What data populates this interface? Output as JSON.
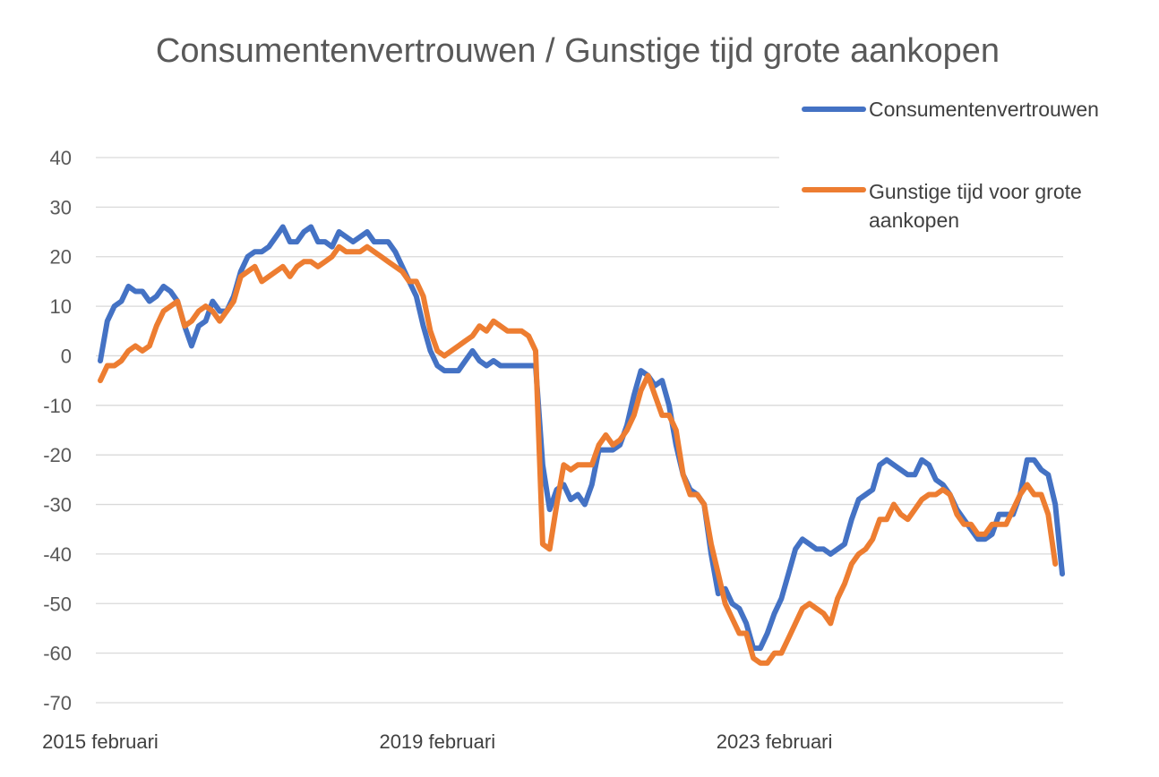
{
  "chart_data": {
    "type": "line",
    "title": "Consumentenvertrouwen  / Gunstige tijd grote aankopen",
    "xlabel": "",
    "ylabel": "",
    "ylim": [
      -70,
      40
    ],
    "yticks": [
      "40",
      "30",
      "20",
      "10",
      "0",
      "-10",
      "-20",
      "-30",
      "-40",
      "-50",
      "-60",
      "-70"
    ],
    "x_tick_labels": [
      "2015 februari",
      "2019 februari",
      "2023 februari"
    ],
    "grid": true,
    "legend_position": "top-right",
    "series": [
      {
        "name": "Consumentenvertrouwen",
        "color": "#4472C4",
        "values": [
          -1,
          7,
          10,
          11,
          14,
          13,
          13,
          11,
          12,
          14,
          13,
          11,
          6,
          2,
          6,
          7,
          11,
          9,
          9,
          12,
          17,
          20,
          21,
          21,
          22,
          24,
          26,
          23,
          23,
          25,
          26,
          23,
          23,
          22,
          25,
          24,
          23,
          24,
          25,
          23,
          23,
          23,
          21,
          18,
          15,
          12,
          6,
          1,
          -2,
          -3,
          -3,
          -3,
          -1,
          1,
          -1,
          -2,
          -1,
          -2,
          -2,
          -2,
          -2,
          -2,
          -2,
          -22,
          -31,
          -27,
          -26,
          -29,
          -28,
          -30,
          -26,
          -19,
          -19,
          -19,
          -18,
          -14,
          -8,
          -3,
          -4,
          -6,
          -5,
          -10,
          -18,
          -24,
          -27,
          -28,
          -30,
          -40,
          -48,
          -47,
          -50,
          -51,
          -54,
          -59,
          -59,
          -56,
          -52,
          -49,
          -44,
          -39,
          -37,
          -38,
          -39,
          -39,
          -40,
          -39,
          -38,
          -33,
          -29,
          -28,
          -27,
          -22,
          -21,
          -22,
          -23,
          -24,
          -24,
          -21,
          -22,
          -25,
          -26,
          -28,
          -31,
          -33,
          -35,
          -37,
          -37,
          -36,
          -32,
          -32,
          -32,
          -28,
          -21,
          -21,
          -23,
          -24,
          -30,
          -44
        ]
      },
      {
        "name": "Gunstige tijd voor grote aankopen",
        "color": "#ED7D31",
        "values": [
          -5,
          -2,
          -2,
          -1,
          1,
          2,
          1,
          2,
          6,
          9,
          10,
          11,
          6,
          7,
          9,
          10,
          9,
          7,
          9,
          11,
          16,
          17,
          18,
          15,
          16,
          17,
          18,
          16,
          18,
          19,
          19,
          18,
          19,
          20,
          22,
          21,
          21,
          21,
          22,
          21,
          20,
          19,
          18,
          17,
          15,
          15,
          12,
          5,
          1,
          0,
          1,
          2,
          3,
          4,
          6,
          5,
          7,
          6,
          5,
          5,
          5,
          4,
          1,
          -38,
          -39,
          -30,
          -22,
          -23,
          -22,
          -22,
          -22,
          -18,
          -16,
          -18,
          -17,
          -15,
          -12,
          -7,
          -4,
          -8,
          -12,
          -12,
          -15,
          -24,
          -28,
          -28,
          -30,
          -38,
          -44,
          -50,
          -53,
          -56,
          -56,
          -61,
          -62,
          -62,
          -60,
          -60,
          -57,
          -54,
          -51,
          -50,
          -51,
          -52,
          -54,
          -49,
          -46,
          -42,
          -40,
          -39,
          -37,
          -33,
          -33,
          -30,
          -32,
          -33,
          -31,
          -29,
          -28,
          -28,
          -27,
          -28,
          -32,
          -34,
          -34,
          -36,
          -36,
          -34,
          -34,
          -34,
          -31,
          -28,
          -26,
          -28,
          -28,
          -32,
          -42
        ]
      }
    ]
  }
}
